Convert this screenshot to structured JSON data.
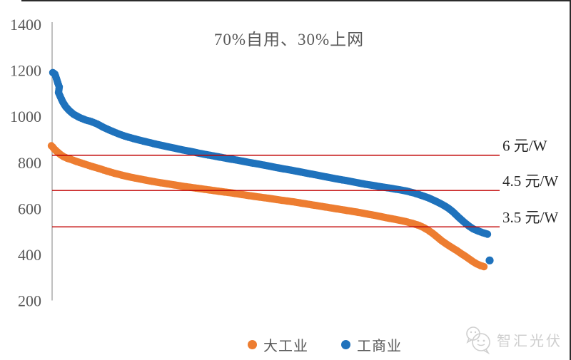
{
  "title": "70%自用、30%上网",
  "colors": {
    "orange": "#ED7D31",
    "blue": "#1F72BC",
    "reference_line": "#C00000",
    "axis_line": "#A6A6A6",
    "tick_text": "#595959",
    "title_text": "#595959",
    "ref_label_text": "#262626",
    "watermark": "#CFCFCF"
  },
  "legend": {
    "items": [
      {
        "label": "大工业",
        "color": "#ED7D31"
      },
      {
        "label": "工商业",
        "color": "#1F72BC"
      }
    ]
  },
  "watermark": {
    "text": "智汇光伏",
    "icon": "chat-bubbles-smiley-icon"
  },
  "chart_data": {
    "type": "scatter",
    "title": "70%自用、30%上网",
    "xlabel": "",
    "ylabel": "",
    "ylim": [
      200,
      1400
    ],
    "y_ticks": [
      1400,
      1200,
      1000,
      800,
      600,
      400,
      200
    ],
    "grid": false,
    "x_tick_labels_shown": false,
    "x_units": "screen_px_along_axis",
    "legend_position": "bottom-center",
    "reference_lines": [
      {
        "label": "6 元/W",
        "value": 831,
        "color": "#C00000"
      },
      {
        "label": "4.5 元/W",
        "value": 678,
        "color": "#C00000"
      },
      {
        "label": "3.5 元/W",
        "value": 520,
        "color": "#C00000"
      }
    ],
    "series": [
      {
        "name": "大工业",
        "key": "series-large-industry",
        "color": "#ED7D31",
        "points": [
          [
            72,
            872
          ],
          [
            74,
            866
          ],
          [
            76,
            858
          ],
          [
            79,
            849
          ],
          [
            82,
            841
          ],
          [
            85,
            833
          ],
          [
            89,
            825
          ],
          [
            94,
            818
          ],
          [
            100,
            812
          ],
          [
            107,
            804
          ],
          [
            114,
            797
          ],
          [
            122,
            789
          ],
          [
            130,
            781
          ],
          [
            140,
            772
          ],
          [
            150,
            762
          ],
          [
            160,
            753
          ],
          [
            170,
            745
          ],
          [
            181,
            737
          ],
          [
            192,
            730
          ],
          [
            204,
            723
          ],
          [
            216,
            716
          ],
          [
            228,
            710
          ],
          [
            240,
            704
          ],
          [
            254,
            697
          ],
          [
            268,
            691
          ],
          [
            282,
            685
          ],
          [
            296,
            679
          ],
          [
            310,
            673
          ],
          [
            325,
            667
          ],
          [
            342,
            659
          ],
          [
            359,
            651
          ],
          [
            376,
            644
          ],
          [
            393,
            636
          ],
          [
            410,
            629
          ],
          [
            428,
            620
          ],
          [
            446,
            611
          ],
          [
            464,
            602
          ],
          [
            482,
            593
          ],
          [
            500,
            584
          ],
          [
            514,
            576
          ],
          [
            528,
            568
          ],
          [
            542,
            559
          ],
          [
            556,
            551
          ],
          [
            568,
            543
          ],
          [
            578,
            535
          ],
          [
            587,
            526
          ],
          [
            594,
            516
          ],
          [
            600,
            505
          ],
          [
            606,
            492
          ],
          [
            612,
            477
          ],
          [
            619,
            459
          ],
          [
            626,
            444
          ],
          [
            633,
            430
          ],
          [
            640,
            417
          ],
          [
            647,
            402
          ],
          [
            653,
            390
          ],
          [
            658,
            379
          ],
          [
            663,
            368
          ],
          [
            668,
            359
          ],
          [
            673,
            352
          ],
          [
            678,
            347
          ]
        ],
        "outlier_points": []
      },
      {
        "name": "工商业",
        "key": "series-commercial-industrial",
        "color": "#1F72BC",
        "points": [
          [
            74,
            1190
          ],
          [
            77,
            1183
          ],
          [
            79,
            1165
          ],
          [
            81,
            1145
          ],
          [
            83,
            1128
          ],
          [
            82,
            1103
          ],
          [
            85,
            1082
          ],
          [
            88,
            1062
          ],
          [
            92,
            1042
          ],
          [
            97,
            1025
          ],
          [
            103,
            1009
          ],
          [
            112,
            994
          ],
          [
            120,
            984
          ],
          [
            128,
            977
          ],
          [
            136,
            967
          ],
          [
            145,
            952
          ],
          [
            155,
            938
          ],
          [
            165,
            925
          ],
          [
            175,
            914
          ],
          [
            185,
            905
          ],
          [
            196,
            896
          ],
          [
            208,
            887
          ],
          [
            220,
            878
          ],
          [
            232,
            870
          ],
          [
            244,
            862
          ],
          [
            256,
            854
          ],
          [
            268,
            847
          ],
          [
            280,
            839
          ],
          [
            292,
            832
          ],
          [
            306,
            824
          ],
          [
            320,
            816
          ],
          [
            335,
            808
          ],
          [
            350,
            799
          ],
          [
            365,
            791
          ],
          [
            380,
            782
          ],
          [
            395,
            773
          ],
          [
            410,
            765
          ],
          [
            425,
            756
          ],
          [
            440,
            747
          ],
          [
            455,
            738
          ],
          [
            470,
            729
          ],
          [
            485,
            721
          ],
          [
            500,
            712
          ],
          [
            512,
            705
          ],
          [
            524,
            699
          ],
          [
            536,
            693
          ],
          [
            548,
            687
          ],
          [
            560,
            681
          ],
          [
            570,
            675
          ],
          [
            580,
            667
          ],
          [
            590,
            657
          ],
          [
            600,
            646
          ],
          [
            608,
            635
          ],
          [
            616,
            623
          ],
          [
            623,
            611
          ],
          [
            629,
            599
          ],
          [
            635,
            584
          ],
          [
            641,
            566
          ],
          [
            647,
            549
          ],
          [
            653,
            533
          ],
          [
            658,
            521
          ],
          [
            663,
            511
          ],
          [
            668,
            504
          ],
          [
            674,
            497
          ],
          [
            679,
            492
          ],
          [
            683,
            488
          ]
        ],
        "outlier_points": [
          [
            686,
            374
          ]
        ]
      }
    ]
  }
}
